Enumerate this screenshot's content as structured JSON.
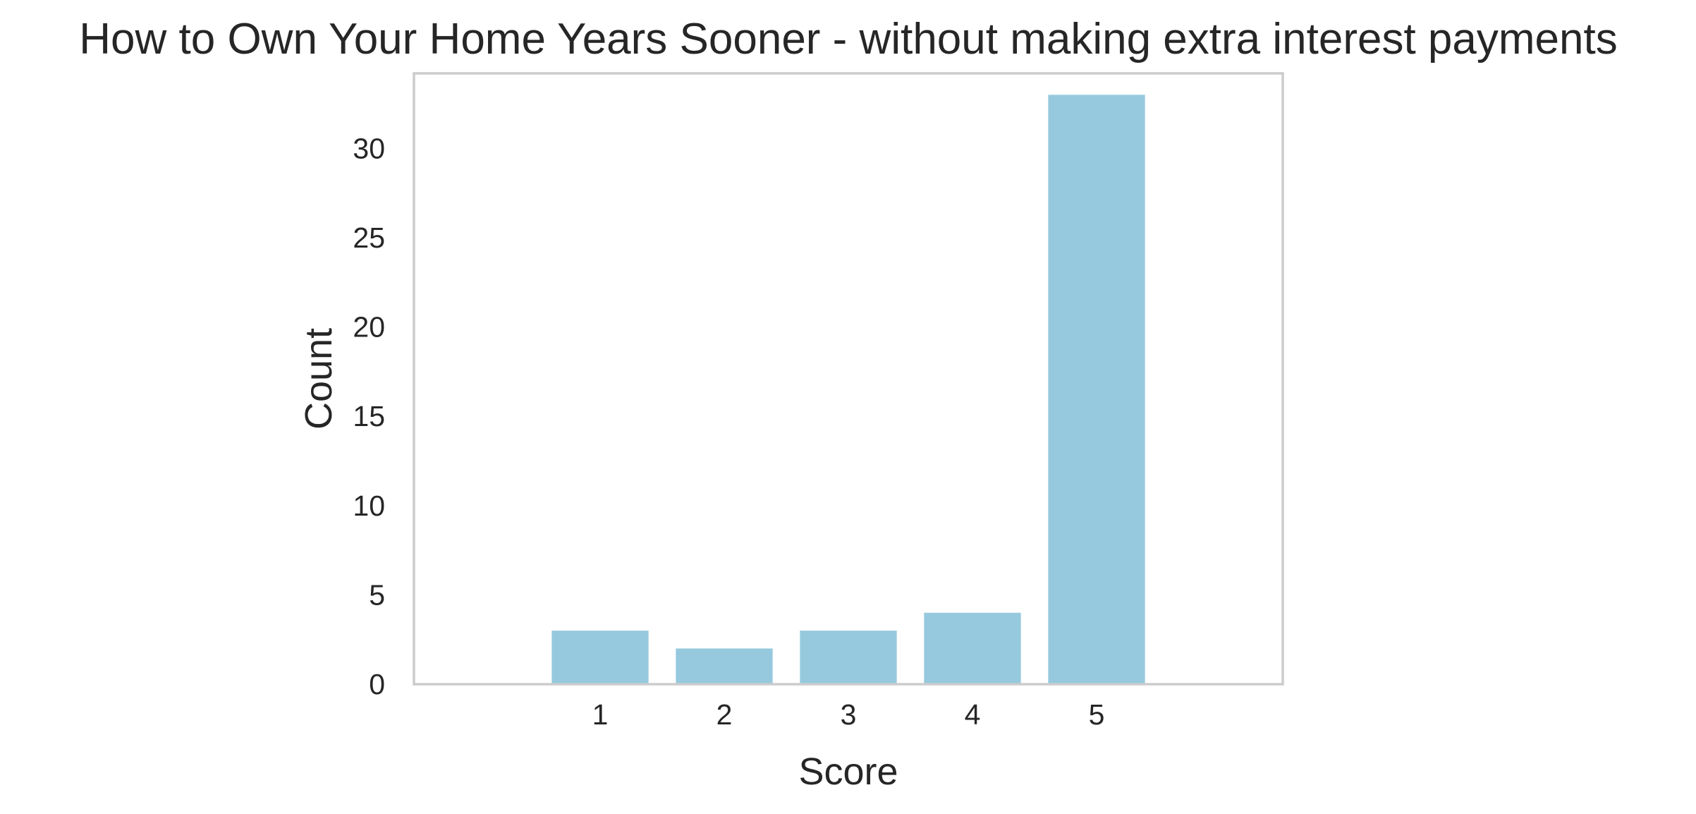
{
  "chart_data": {
    "type": "bar",
    "title": "How to Own Your Home Years Sooner - without making extra interest payments",
    "xlabel": "Score",
    "ylabel": "Count",
    "categories": [
      "1",
      "2",
      "3",
      "4",
      "5"
    ],
    "values": [
      3,
      2,
      3,
      4,
      33
    ],
    "xlim": [
      -0.5,
      6.5
    ],
    "ylim": [
      0,
      34.2
    ],
    "yticks": [
      0,
      5,
      10,
      15,
      20,
      25,
      30
    ],
    "grid": false,
    "legend": "none",
    "colors": {
      "bar": "#96c9de",
      "axes_edge": "#cccccc",
      "text": "#262626"
    }
  }
}
